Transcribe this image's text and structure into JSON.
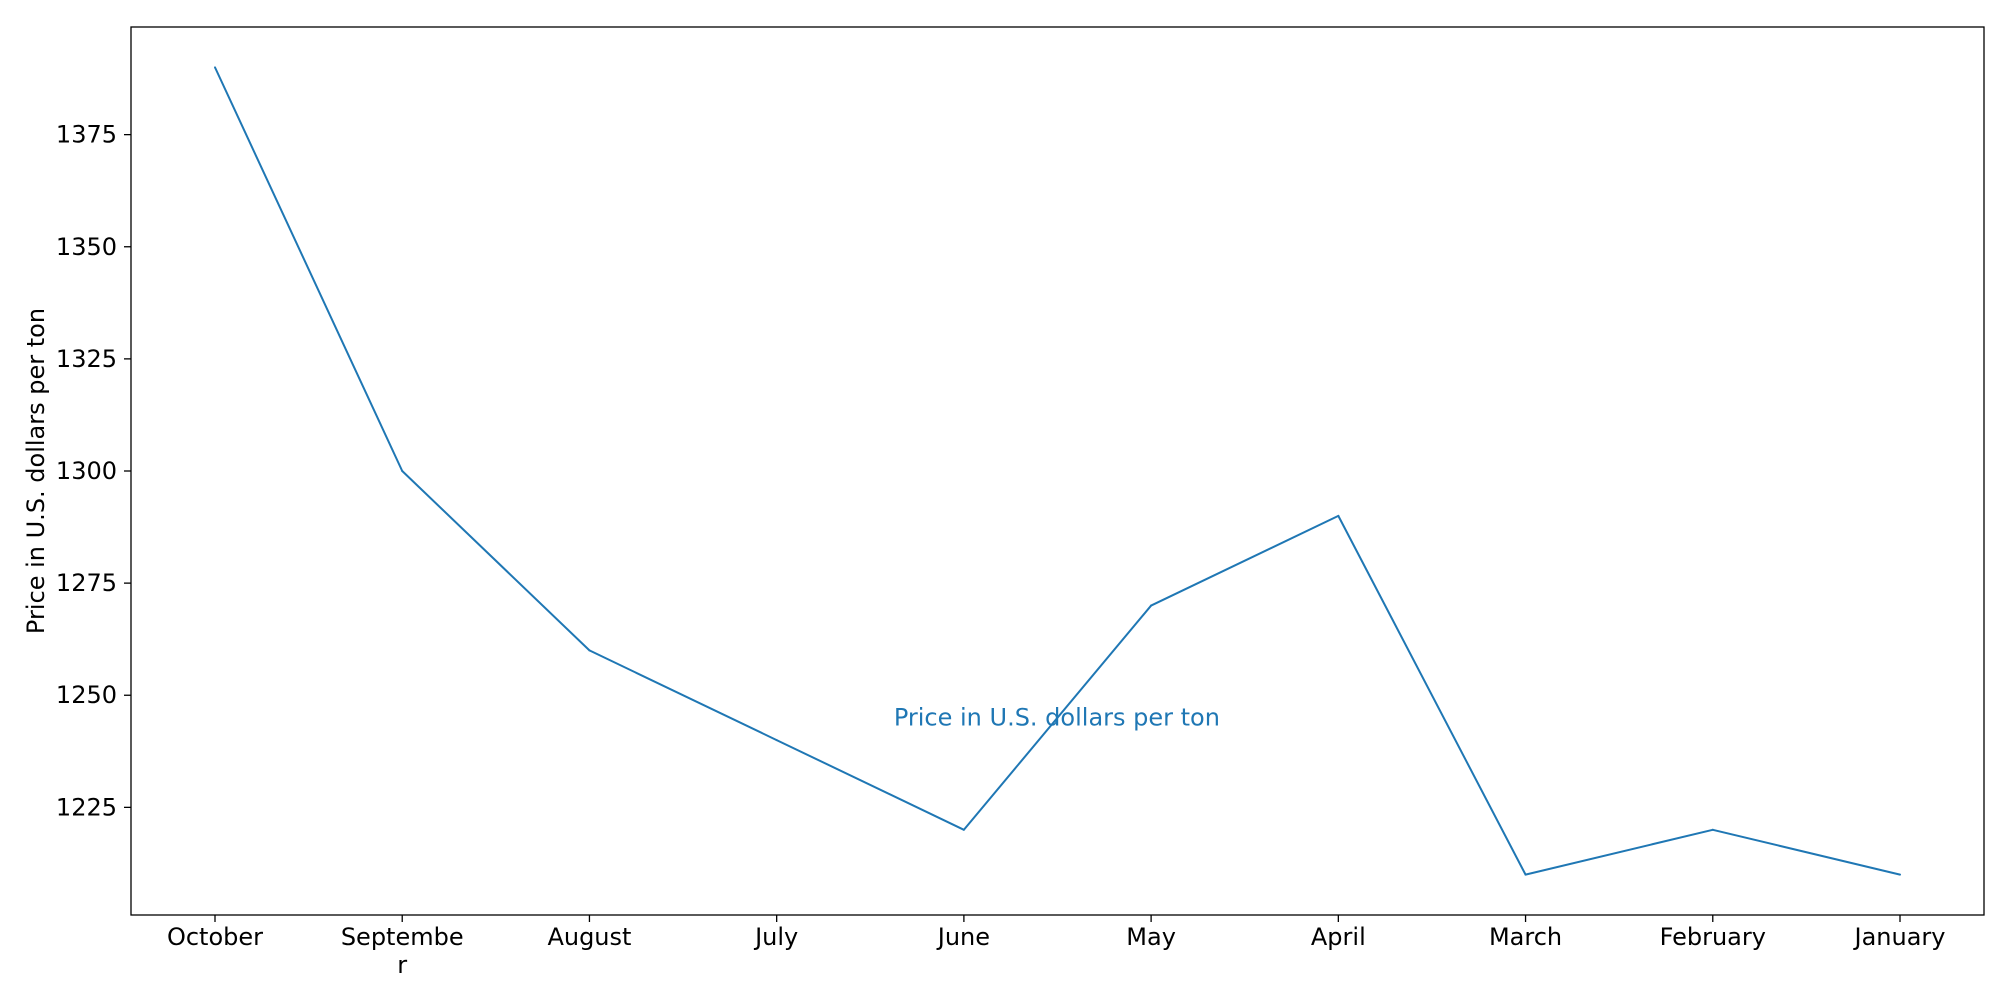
{
  "chart_data": {
    "type": "line",
    "categories": [
      "October",
      "September",
      "August",
      "July",
      "June",
      "May",
      "April",
      "March",
      "February",
      "January"
    ],
    "category_display": [
      [
        "October"
      ],
      [
        "Septembe",
        "r"
      ],
      [
        "August"
      ],
      [
        "July"
      ],
      [
        "June"
      ],
      [
        "May"
      ],
      [
        "April"
      ],
      [
        "March"
      ],
      [
        "February"
      ],
      [
        "January"
      ]
    ],
    "series": [
      {
        "values": [
          1390,
          1300,
          1260,
          1240,
          1220,
          1270,
          1290,
          1210,
          1220,
          1210
        ],
        "color": "#1f77b4"
      }
    ],
    "ylabel": "Price in U.S. dollars per ton",
    "xlabel": "",
    "title": "",
    "ylim": [
      1201,
      1399
    ],
    "yticks": [
      1225,
      1250,
      1275,
      1300,
      1325,
      1350,
      1375
    ],
    "annotation": {
      "text": "Price in U.S. dollars per ton",
      "x": "June",
      "y": 1245,
      "color": "#1f77b4"
    },
    "grid": false,
    "legend": "none"
  }
}
